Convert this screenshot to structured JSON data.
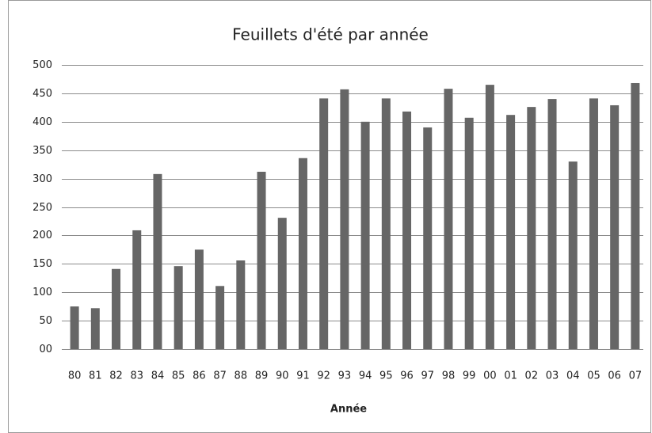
{
  "chart_data": {
    "type": "bar",
    "title": "Feuillets d'été par année",
    "x_label": "Année",
    "categories": [
      "80",
      "81",
      "82",
      "83",
      "84",
      "85",
      "86",
      "87",
      "88",
      "89",
      "90",
      "91",
      "92",
      "93",
      "94",
      "95",
      "96",
      "97",
      "98",
      "99",
      "00",
      "01",
      "02",
      "03",
      "04",
      "05",
      "06",
      "07"
    ],
    "values": [
      75,
      72,
      141,
      209,
      308,
      146,
      175,
      111,
      156,
      312,
      231,
      336,
      441,
      457,
      400,
      441,
      418,
      390,
      458,
      407,
      465,
      412,
      426,
      440,
      330,
      441,
      429,
      468
    ],
    "color": "#666666",
    "ylim": [
      0,
      500
    ],
    "yticks": [
      {
        "value": 0,
        "label": "00"
      },
      50,
      100,
      150,
      200,
      250,
      300,
      350,
      400,
      450,
      500
    ],
    "grid": true
  }
}
